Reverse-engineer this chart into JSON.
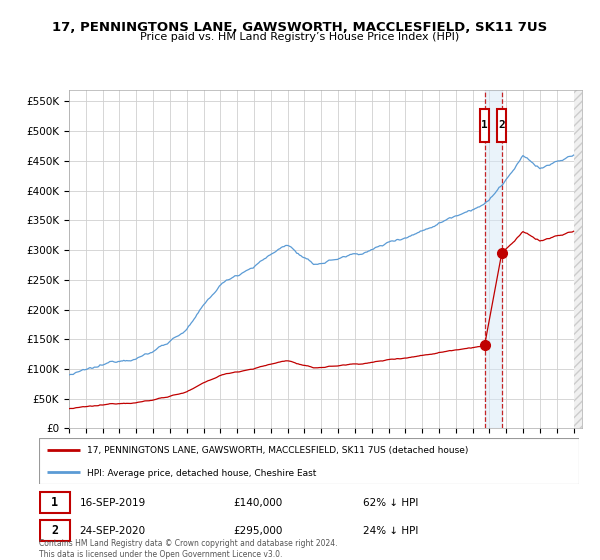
{
  "title": "17, PENNINGTONS LANE, GAWSWORTH, MACCLESFIELD, SK11 7US",
  "subtitle": "Price paid vs. HM Land Registry’s House Price Index (HPI)",
  "yticks": [
    0,
    50000,
    100000,
    150000,
    200000,
    250000,
    300000,
    350000,
    400000,
    450000,
    500000,
    550000
  ],
  "ytick_labels": [
    "£0",
    "£50K",
    "£100K",
    "£150K",
    "£200K",
    "£250K",
    "£300K",
    "£350K",
    "£400K",
    "£450K",
    "£500K",
    "£550K"
  ],
  "xmin": 1995.0,
  "xmax": 2025.5,
  "hpi_color": "#5b9bd5",
  "property_color": "#c00000",
  "sale1_year": 2019.71,
  "sale1_price": 140000,
  "sale2_year": 2020.73,
  "sale2_price": 295000,
  "legend_property": "17, PENNINGTONS LANE, GAWSWORTH, MACCLESFIELD, SK11 7US (detached house)",
  "legend_hpi": "HPI: Average price, detached house, Cheshire East",
  "annotation1_text": "16-SEP-2019",
  "annotation1_price": "£140,000",
  "annotation1_hpi": "62% ↓ HPI",
  "annotation2_text": "24-SEP-2020",
  "annotation2_price": "£295,000",
  "annotation2_hpi": "24% ↓ HPI",
  "footer": "Contains HM Land Registry data © Crown copyright and database right 2024.\nThis data is licensed under the Open Government Licence v3.0.",
  "background_color": "#ffffff",
  "grid_color": "#d0d0d0",
  "hatch_color": "#cccccc"
}
